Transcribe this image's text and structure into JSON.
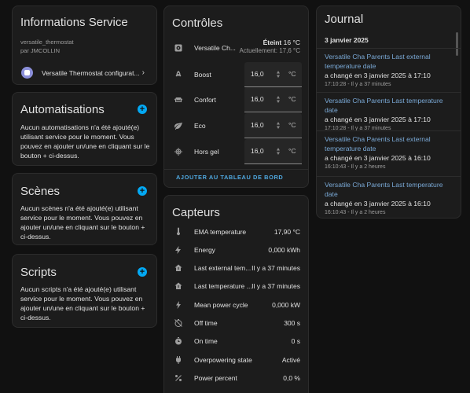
{
  "info": {
    "title": "Informations Service",
    "service_id": "versatile_thermostat",
    "author": "par JMCOLLIN",
    "integration_link": "Versatile Thermostat configurat..."
  },
  "automations": {
    "title": "Automatisations",
    "desc": "Aucun automatisations n'a été ajouté(e) utilisant service pour le moment. Vous pouvez en ajouter un/une en cliquant sur le bouton + ci-dessus."
  },
  "scenes": {
    "title": "Scènes",
    "desc": "Aucun scènes n'a été ajouté(e) utilisant service pour le moment. Vous pouvez en ajouter un/une en cliquant sur le bouton + ci-dessus."
  },
  "scripts": {
    "title": "Scripts",
    "desc": "Aucun scripts n'a été ajouté(e) utilisant service pour le moment. Vous pouvez en ajouter un/une en cliquant sur le bouton + ci-dessus."
  },
  "controls": {
    "title": "Contrôles",
    "thermostat_name": "Versatile Ch...",
    "thermostat_state": "Éteint",
    "thermostat_target": "16 °C",
    "thermostat_current": "Actuellement: 17,6 °C",
    "presets": [
      {
        "label": "Boost",
        "value": "16,0",
        "unit": "°C",
        "icon": "rocket-icon"
      },
      {
        "label": "Confort",
        "value": "16,0",
        "unit": "°C",
        "icon": "sofa-icon"
      },
      {
        "label": "Eco",
        "value": "16,0",
        "unit": "°C",
        "icon": "leaf-icon"
      },
      {
        "label": "Hors gel",
        "value": "16,0",
        "unit": "°C",
        "icon": "snowflake-icon"
      }
    ],
    "add_dashboard": "AJOUTER AU TABLEAU DE BORD"
  },
  "sensors": {
    "title": "Capteurs",
    "items": [
      {
        "label": "EMA temperature",
        "value": "17,90 °C",
        "icon": "thermometer-icon"
      },
      {
        "label": "Energy",
        "value": "0,000 kWh",
        "icon": "lightning-icon"
      },
      {
        "label": "Last external tem...",
        "value": "Il y a 37 minutes",
        "icon": "home-thermometer-icon"
      },
      {
        "label": "Last temperature ...",
        "value": "Il y a 37 minutes",
        "icon": "home-thermometer-icon"
      },
      {
        "label": "Mean power cycle",
        "value": "0,000 kW",
        "icon": "flash-icon"
      },
      {
        "label": "Off time",
        "value": "300 s",
        "icon": "timer-off-icon"
      },
      {
        "label": "On time",
        "value": "0 s",
        "icon": "timer-icon"
      },
      {
        "label": "Overpowering state",
        "value": "Activé",
        "icon": "power-plug-icon"
      },
      {
        "label": "Power percent",
        "value": "0,0 %",
        "icon": "percent-icon"
      }
    ]
  },
  "journal": {
    "title": "Journal",
    "date_header": "3 janvier 2025",
    "entries": [
      {
        "title": "Versatile Cha Parents Last external temperature date",
        "body": "a changé en 3 janvier 2025 à 17:10",
        "time": "17:10:28 - Il y a 37 minutes"
      },
      {
        "title": "Versatile Cha Parents Last temperature date",
        "body": "a changé en 3 janvier 2025 à 17:10",
        "time": "17:10:28 - Il y a 37 minutes"
      },
      {
        "title": "Versatile Cha Parents Last external temperature date",
        "body": "a changé en 3 janvier 2025 à 16:10",
        "time": "16:10:43 - Il y a 2 heures"
      },
      {
        "title": "Versatile Cha Parents Last temperature date",
        "body": "a changé en 3 janvier 2025 à 16:10",
        "time": "16:10:43 - Il y a 2 heures"
      }
    ]
  }
}
